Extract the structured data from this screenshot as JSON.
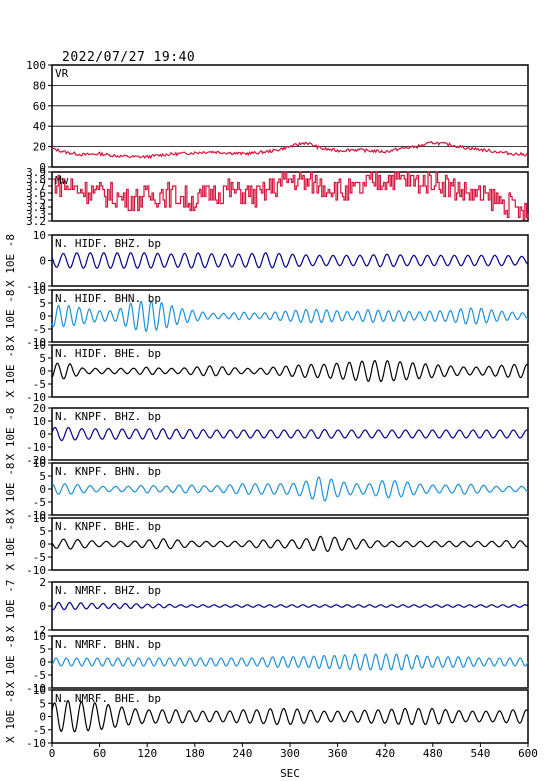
{
  "timestamp": "2022/07/27  19:40",
  "colors": {
    "vr": "#d4143c",
    "mw": "#d4143c",
    "z": "#00008b",
    "n": "#1e90d8",
    "e": "#000000",
    "frame": "#000000",
    "grid": "#000000"
  },
  "chart_data": {
    "type": "line",
    "xlabel": "SEC",
    "xlim": [
      0,
      600
    ],
    "xticks": [
      0,
      60,
      120,
      180,
      240,
      300,
      360,
      420,
      480,
      540,
      600
    ],
    "panels": [
      {
        "id": "vr",
        "label": "VR",
        "ylabel": "",
        "ylim": [
          0,
          100
        ],
        "yticks": [
          0,
          20,
          40,
          60,
          80,
          100
        ],
        "grid": true,
        "color_key": "vr",
        "kind": "vr",
        "series": {
          "name": "VR",
          "x": [
            0,
            20,
            40,
            60,
            80,
            100,
            120,
            140,
            160,
            180,
            200,
            220,
            240,
            260,
            280,
            300,
            320,
            340,
            360,
            380,
            400,
            420,
            440,
            460,
            480,
            500,
            520,
            540,
            560,
            580,
            600
          ],
          "y": [
            18,
            14,
            12,
            13,
            11,
            10,
            10,
            12,
            13,
            14,
            15,
            14,
            13,
            14,
            16,
            20,
            24,
            18,
            16,
            17,
            16,
            15,
            18,
            20,
            24,
            22,
            19,
            17,
            15,
            13,
            12
          ]
        }
      },
      {
        "id": "mw",
        "label": "Mw",
        "ylabel": "",
        "ylim": [
          3.2,
          3.9
        ],
        "yticks": [
          "3.2",
          "3.3",
          "3.4",
          "3.5",
          "3.6",
          "3.7",
          "3.8",
          "3.9"
        ],
        "grid": false,
        "color_key": "mw",
        "kind": "mw",
        "series": {
          "name": "Mw",
          "x": [
            0,
            20,
            40,
            60,
            80,
            100,
            120,
            140,
            160,
            180,
            200,
            220,
            240,
            260,
            280,
            300,
            320,
            340,
            360,
            380,
            400,
            420,
            440,
            460,
            480,
            500,
            520,
            540,
            560,
            580,
            600
          ],
          "y": [
            3.75,
            3.7,
            3.65,
            3.6,
            3.55,
            3.5,
            3.55,
            3.6,
            3.55,
            3.5,
            3.6,
            3.65,
            3.6,
            3.55,
            3.7,
            3.8,
            3.75,
            3.7,
            3.65,
            3.6,
            3.75,
            3.8,
            3.8,
            3.75,
            3.8,
            3.7,
            3.6,
            3.55,
            3.5,
            3.4,
            3.25
          ]
        }
      },
      {
        "id": "hidf-z",
        "label": "N. HIDF. BHZ. bp",
        "ylabel": "X 10E -8",
        "ylim": [
          -10,
          10
        ],
        "yticks": [
          "-10",
          "0",
          "10"
        ],
        "color_key": "z",
        "kind": "wave",
        "amp": [
          2.5,
          3,
          3,
          3,
          3,
          2.5,
          3,
          2.5,
          2.5,
          3,
          2.5,
          2,
          2,
          2,
          2.5,
          2,
          2,
          2,
          2,
          2,
          1.5
        ],
        "period": 17
      },
      {
        "id": "hidf-n",
        "label": "N. HIDF. BHN. bp",
        "ylabel": "X 10E -8",
        "ylim": [
          -10,
          10
        ],
        "yticks": [
          "-10",
          "-5",
          "0",
          "5",
          "10"
        ],
        "color_key": "n",
        "kind": "wave",
        "amp": [
          4,
          4,
          3,
          2,
          2,
          5,
          6,
          5,
          3,
          2,
          1,
          1,
          1.5,
          1,
          1.5,
          2,
          2.5,
          2.5,
          2,
          1.5,
          2.5,
          2,
          2,
          1.5,
          2,
          2,
          3,
          3,
          2,
          1.5,
          1
        ],
        "period": 13
      },
      {
        "id": "hidf-e",
        "label": "N. HIDF. BHE. bp",
        "ylabel": "X 10E -8",
        "ylim": [
          -10,
          10
        ],
        "yticks": [
          "-10",
          "-5",
          "0",
          "5",
          "10"
        ],
        "color_key": "e",
        "kind": "wave",
        "amp": [
          3,
          3,
          1,
          1,
          1,
          1,
          1.5,
          1,
          1,
          1.5,
          2,
          1.5,
          1,
          1,
          1.5,
          2,
          2.5,
          2.5,
          3,
          3.5,
          4,
          4,
          3.5,
          3,
          2.5,
          2,
          1.5,
          1.5,
          2,
          2.5,
          2.5
        ],
        "period": 16
      },
      {
        "id": "knpf-z",
        "label": "N. KNPF. BHZ. bp",
        "ylabel": "X 10E -8",
        "ylim": [
          -20,
          20
        ],
        "yticks": [
          "-20",
          "-10",
          "0",
          "10",
          "20"
        ],
        "color_key": "z",
        "kind": "wave",
        "amp": [
          5,
          5,
          4,
          4,
          4,
          3.5,
          4,
          4,
          3.5,
          3.5,
          3,
          3,
          3,
          3,
          3,
          3,
          3,
          3.5,
          3,
          3,
          3,
          3,
          3,
          3,
          3,
          3,
          3,
          3,
          3,
          3,
          3
        ],
        "period": 17
      },
      {
        "id": "knpf-n",
        "label": "N. KNPF. BHN. bp",
        "ylabel": "X 10E -8",
        "ylim": [
          -10,
          10
        ],
        "yticks": [
          "-10",
          "-5",
          "0",
          "5",
          "10"
        ],
        "color_key": "n",
        "kind": "wave",
        "amp": [
          2,
          2,
          1.5,
          1,
          1,
          1,
          1.5,
          1,
          1.5,
          1.5,
          1,
          1.5,
          2,
          2,
          2,
          2,
          3,
          5,
          3,
          2,
          2,
          3.5,
          3,
          2,
          1.5,
          1.5,
          2,
          1.5,
          1,
          1,
          1
        ],
        "period": 16
      },
      {
        "id": "knpf-e",
        "label": "N. KNPF. BHE. bp",
        "ylabel": "X 10E -8",
        "ylim": [
          -10,
          10
        ],
        "yticks": [
          "-10",
          "-5",
          "0",
          "5",
          "10"
        ],
        "color_key": "e",
        "kind": "wave",
        "amp": [
          1.5,
          2,
          1.5,
          1,
          1,
          1,
          1.5,
          2,
          1.5,
          1,
          1,
          1,
          1,
          1.5,
          1.5,
          1.5,
          2,
          3,
          2.5,
          2,
          1.5,
          1,
          1,
          1,
          1,
          1,
          1,
          1,
          1,
          1.5,
          1
        ],
        "period": 18
      },
      {
        "id": "nmrf-z",
        "label": "N. NMRF. BHZ. bp",
        "ylabel": "X 10E -7",
        "ylim": [
          -2,
          2
        ],
        "yticks": [
          "-2",
          "0",
          "2"
        ],
        "color_key": "z",
        "kind": "wave",
        "amp": [
          0.3,
          0.3,
          0.25,
          0.2,
          0.2,
          0.2,
          0.15,
          0.15,
          0.1,
          0.1,
          0.1,
          0.1,
          0.1,
          0.1,
          0.1,
          0.1,
          0.1,
          0.1,
          0.1,
          0.1,
          0.1,
          0.1,
          0.1,
          0.1,
          0.1,
          0.1,
          0.1,
          0.1,
          0.1,
          0.1,
          0.1
        ],
        "period": 14
      },
      {
        "id": "nmrf-n",
        "label": "N. NMRF. BHN. bp",
        "ylabel": "X 10E -8",
        "ylim": [
          -10,
          10
        ],
        "yticks": [
          "-10",
          "-5",
          "0",
          "5",
          "10"
        ],
        "color_key": "n",
        "kind": "wave",
        "amp": [
          1.5,
          1.5,
          1.5,
          1.5,
          1.5,
          1.5,
          1.5,
          1.5,
          1.5,
          1.5,
          1.5,
          1.5,
          1.5,
          1.5,
          2,
          2,
          2,
          2.5,
          2.5,
          3,
          3,
          3,
          3,
          2.5,
          2,
          2,
          2,
          1.5,
          1.5,
          1.5,
          1.5
        ],
        "period": 13
      },
      {
        "id": "nmrf-e",
        "label": "N. NMRF. BHE. bp",
        "ylabel": "X 10E -8",
        "ylim": [
          -10,
          10
        ],
        "yticks": [
          "-10",
          "-5",
          "0",
          "5",
          "10"
        ],
        "color_key": "e",
        "kind": "wave",
        "amp": [
          5,
          6,
          5.5,
          5,
          4,
          3,
          2.5,
          2.5,
          2.5,
          2,
          2,
          2,
          2.5,
          2.5,
          3,
          3,
          2.5,
          2,
          2,
          2,
          2.5,
          2.5,
          3,
          3,
          3,
          2.5,
          2,
          2,
          2,
          2.5,
          2.5
        ],
        "period": 17
      }
    ]
  }
}
